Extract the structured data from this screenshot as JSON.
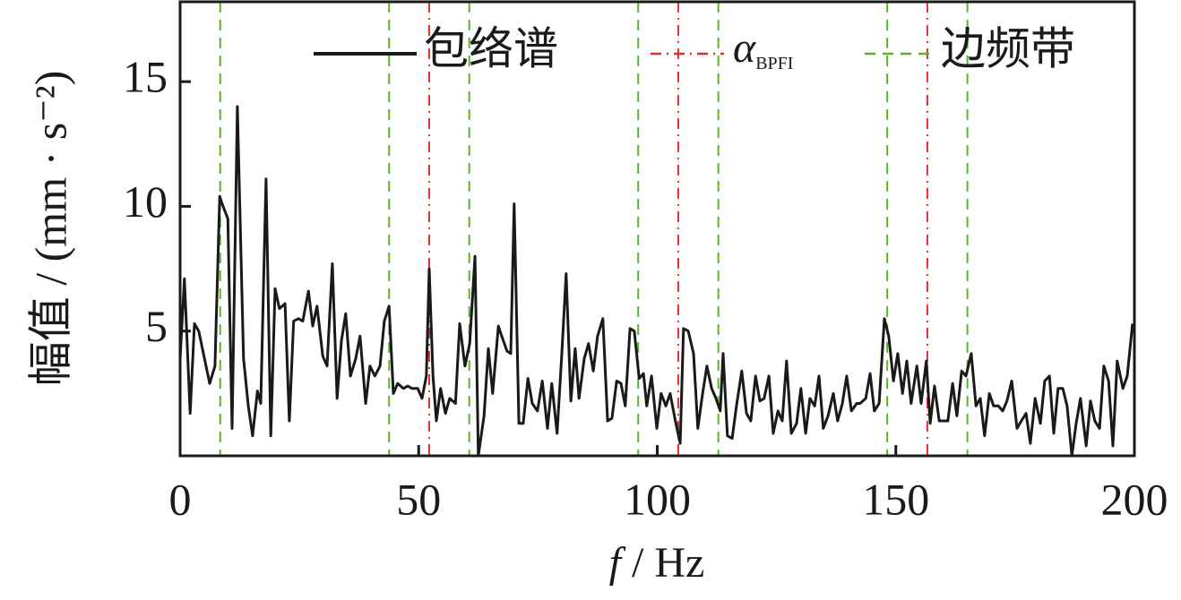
{
  "chart_data": {
    "type": "line",
    "x_label": {
      "var": "f",
      "unit": "/ Hz"
    },
    "y_label": "幅值 / (mm · s⁻²)",
    "xlim": [
      0,
      200
    ],
    "xticks": [
      0,
      50,
      100,
      150,
      200
    ],
    "ylim": [
      0,
      18.2
    ],
    "yticks": [
      5,
      10,
      15
    ],
    "grid": false,
    "legend": "top",
    "series": [
      {
        "name": "包络谱",
        "color": "#1a1a1a",
        "x": [
          0,
          0.9,
          2.1,
          3.0,
          3.9,
          5.1,
          6.2,
          7.3,
          8.3,
          8.8,
          10.0,
          10.9,
          12.0,
          13.3,
          14.3,
          15.2,
          16.2,
          16.9,
          18.0,
          19.0,
          19.9,
          20.8,
          22.0,
          22.9,
          23.8,
          24.8,
          25.7,
          26.9,
          27.8,
          28.7,
          29.9,
          30.8,
          31.9,
          32.9,
          33.8,
          34.7,
          35.7,
          36.8,
          37.7,
          38.9,
          39.8,
          40.8,
          41.9,
          42.8,
          43.8,
          44.7,
          45.6,
          46.8,
          47.7,
          48.6,
          49.8,
          50.7,
          51.6,
          52.2,
          53.0,
          53.7,
          54.6,
          55.6,
          56.5,
          57.7,
          58.6,
          59.7,
          60.7,
          61.8,
          62.5,
          63.7,
          64.6,
          65.5,
          66.7,
          67.4,
          68.5,
          69.3,
          70.0,
          71.0,
          71.9,
          72.9,
          73.8,
          74.9,
          75.9,
          77.0,
          77.9,
          79.0,
          80.0,
          80.9,
          81.9,
          82.8,
          83.6,
          84.7,
          85.6,
          86.6,
          87.5,
          88.6,
          89.6,
          90.5,
          91.5,
          92.4,
          93.3,
          94.3,
          95.2,
          96.2,
          97.1,
          97.8,
          98.8,
          99.9,
          100.8,
          101.8,
          102.7,
          103.8,
          104.8,
          105.5,
          106.5,
          107.6,
          108.5,
          109.5,
          110.4,
          111.4,
          112.3,
          113.2,
          113.8,
          114.7,
          115.7,
          116.6,
          117.7,
          118.7,
          119.6,
          120.6,
          121.5,
          122.4,
          123.4,
          124.3,
          125.3,
          126.2,
          127.1,
          128.1,
          129.2,
          130.1,
          131.1,
          132.0,
          133.0,
          133.9,
          134.8,
          135.8,
          136.9,
          137.8,
          138.8,
          139.7,
          140.7,
          141.8,
          142.5,
          143.7,
          144.6,
          145.5,
          146.5,
          147.6,
          148.5,
          149.5,
          150.4,
          151.4,
          152.3,
          153.2,
          154.4,
          155.3,
          156.4,
          157.2,
          158.1,
          159.1,
          160.2,
          160.9,
          161.9,
          162.8,
          163.8,
          164.7,
          165.8,
          166.8,
          167.7,
          168.6,
          169.6,
          170.5,
          171.5,
          172.4,
          173.3,
          174.3,
          175.4,
          176.3,
          177.3,
          178.2,
          179.2,
          180.3,
          181.2,
          182.2,
          183.1,
          184.0,
          185.0,
          185.9,
          186.9,
          187.8,
          188.7,
          189.9,
          190.8,
          191.7,
          192.7,
          193.6,
          194.6,
          195.5,
          196.4,
          197.6,
          198.5,
          199.6
        ],
        "values": [
          3.9,
          7.1,
          1.7,
          5.3,
          5.0,
          3.9,
          2.9,
          3.6,
          10.4,
          10.1,
          9.5,
          1.1,
          14.0,
          3.9,
          2.0,
          0.8,
          2.6,
          2.1,
          11.1,
          0.8,
          6.7,
          5.9,
          6.1,
          1.4,
          5.4,
          5.5,
          5.4,
          6.6,
          5.2,
          6.0,
          4.0,
          3.6,
          7.7,
          2.3,
          4.6,
          5.7,
          3.2,
          3.9,
          4.8,
          2.1,
          3.6,
          3.2,
          3.6,
          5.4,
          6.0,
          2.5,
          2.9,
          2.7,
          2.8,
          2.7,
          2.7,
          2.3,
          3.2,
          7.5,
          3.2,
          1.4,
          2.7,
          1.7,
          2.3,
          2.1,
          5.3,
          3.6,
          4.5,
          8.0,
          0,
          1.6,
          4.3,
          2.5,
          5.2,
          4.8,
          4.2,
          4.1,
          10.1,
          1.3,
          1.3,
          3.1,
          2.1,
          1.8,
          3.0,
          1.1,
          2.9,
          0.9,
          4.1,
          7.3,
          2.2,
          4.3,
          2.3,
          3.9,
          4.5,
          3.4,
          4.8,
          5.5,
          1.4,
          1.5,
          3.0,
          2.9,
          2.0,
          5.1,
          5.0,
          3.1,
          3.3,
          2.0,
          3.2,
          1.1,
          2.5,
          2.0,
          2.5,
          1.4,
          0.5,
          5.1,
          5.0,
          4.1,
          1.1,
          2.5,
          3.6,
          2.7,
          2.3,
          1.8,
          4.1,
          0.8,
          0.7,
          2.0,
          3.4,
          1.7,
          1.4,
          3.2,
          2.2,
          2.3,
          3.2,
          0.9,
          1.8,
          1.4,
          3.8,
          0.9,
          1.3,
          2.7,
          0.9,
          2.3,
          2.0,
          3.2,
          1.1,
          1.6,
          2.5,
          1.4,
          2.1,
          3.2,
          1.8,
          2.1,
          2.1,
          2.3,
          3.3,
          1.8,
          2.1,
          5.5,
          4.8,
          3.0,
          4.1,
          2.5,
          3.8,
          2.1,
          3.6,
          2.1,
          3.8,
          1.3,
          2.8,
          1.4,
          1.4,
          1.4,
          2.9,
          1.6,
          3.4,
          3.2,
          4.1,
          2.0,
          2.3,
          0.8,
          2.5,
          2.0,
          2.0,
          1.8,
          2.2,
          3.0,
          1.1,
          1.4,
          1.7,
          0.5,
          2.3,
          1.3,
          3.0,
          3.2,
          0.9,
          2.7,
          2.7,
          2.0,
          0,
          1.3,
          2.3,
          0.4,
          2.2,
          1.4,
          1.1,
          3.6,
          3.0,
          0.4,
          3.8,
          2.7,
          3.2,
          5.3
        ]
      }
    ],
    "vlines": [
      {
        "name": "α",
        "name_sub": "BPFI",
        "color": "#e0312f",
        "style": "dash-dot",
        "x": [
          0,
          52.2,
          104.4,
          156.6
        ]
      },
      {
        "name": "边频带",
        "color": "#5bb330",
        "style": "dashed",
        "x": [
          8.4,
          43.8,
          60.6,
          96.0,
          112.8,
          148.2,
          165.0
        ]
      }
    ]
  }
}
